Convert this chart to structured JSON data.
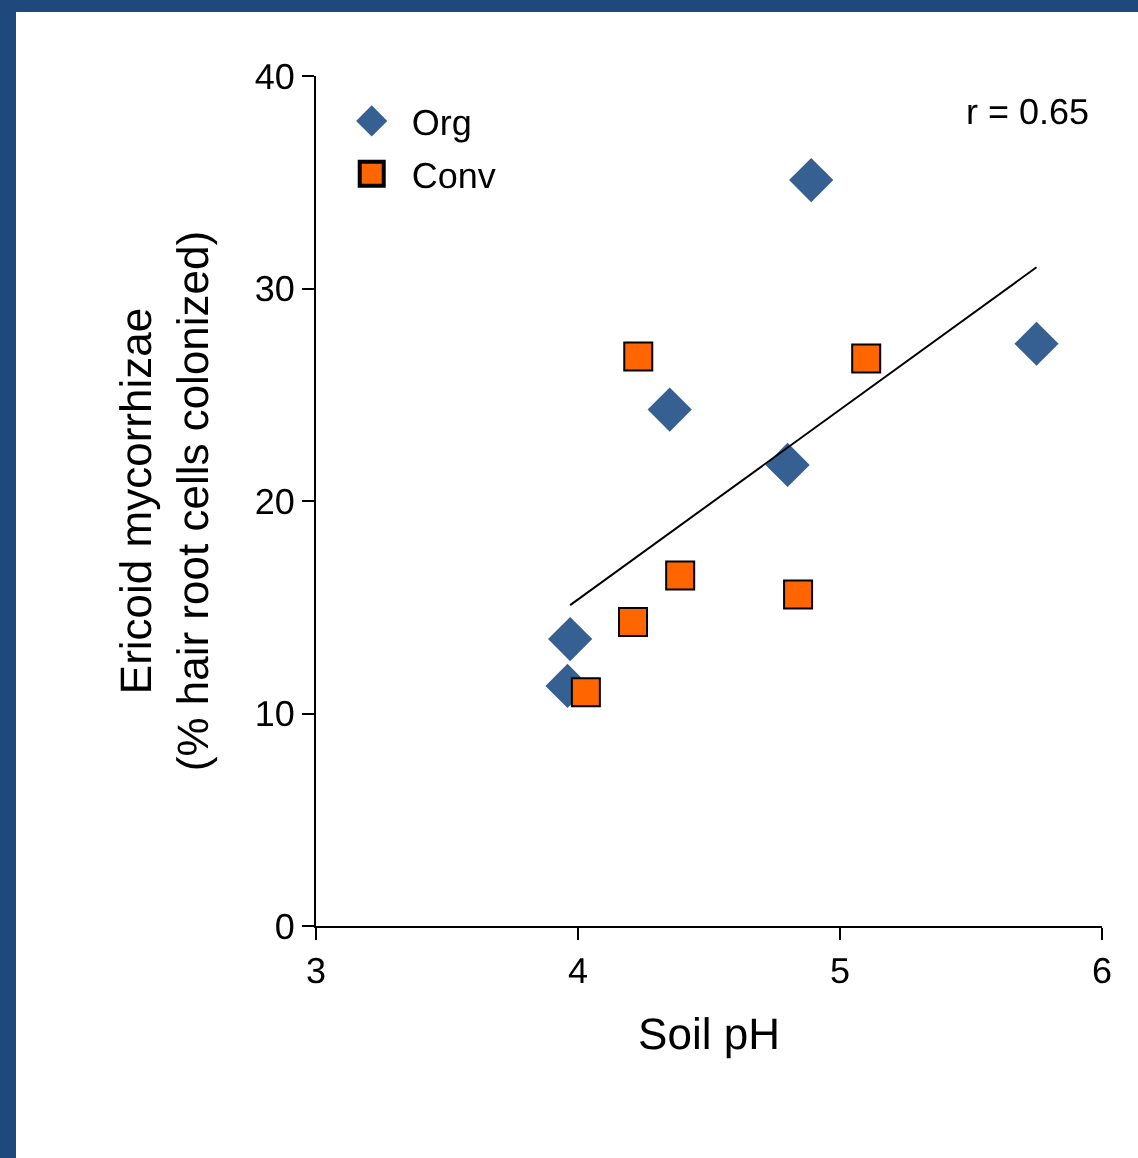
{
  "chart_data": {
    "type": "scatter",
    "xlabel": "Soil pH",
    "ylabel": "Ericoid mycorrhizae\n(% hair root cells colonized)",
    "annotations": [
      "r = 0.65"
    ],
    "series": [
      {
        "name": "Org",
        "color": "#376092",
        "marker": "diamond",
        "x": [
          4.89,
          5.75,
          4.35,
          4.8,
          3.97,
          3.96
        ],
        "values": [
          35.1,
          27.4,
          24.3,
          21.7,
          13.5,
          11.3
        ]
      },
      {
        "name": "Conv",
        "color": "#ff6600",
        "marker": "square",
        "x": [
          4.23,
          5.1,
          4.39,
          4.21,
          4.84,
          4.03
        ],
        "values": [
          26.8,
          26.7,
          16.5,
          14.3,
          15.6,
          11.0
        ]
      },
      {
        "type": "line",
        "color": "#000000",
        "marker": "none",
        "x": [
          3.97,
          5.75
        ],
        "values": [
          15.1,
          31.0
        ]
      }
    ],
    "xlim": [
      3,
      6
    ],
    "xticks": [
      3,
      4,
      5,
      6
    ],
    "ylim": [
      0,
      40
    ],
    "yticks": [
      0,
      10,
      20,
      30,
      40
    ],
    "grid": false,
    "legend": "top left"
  }
}
